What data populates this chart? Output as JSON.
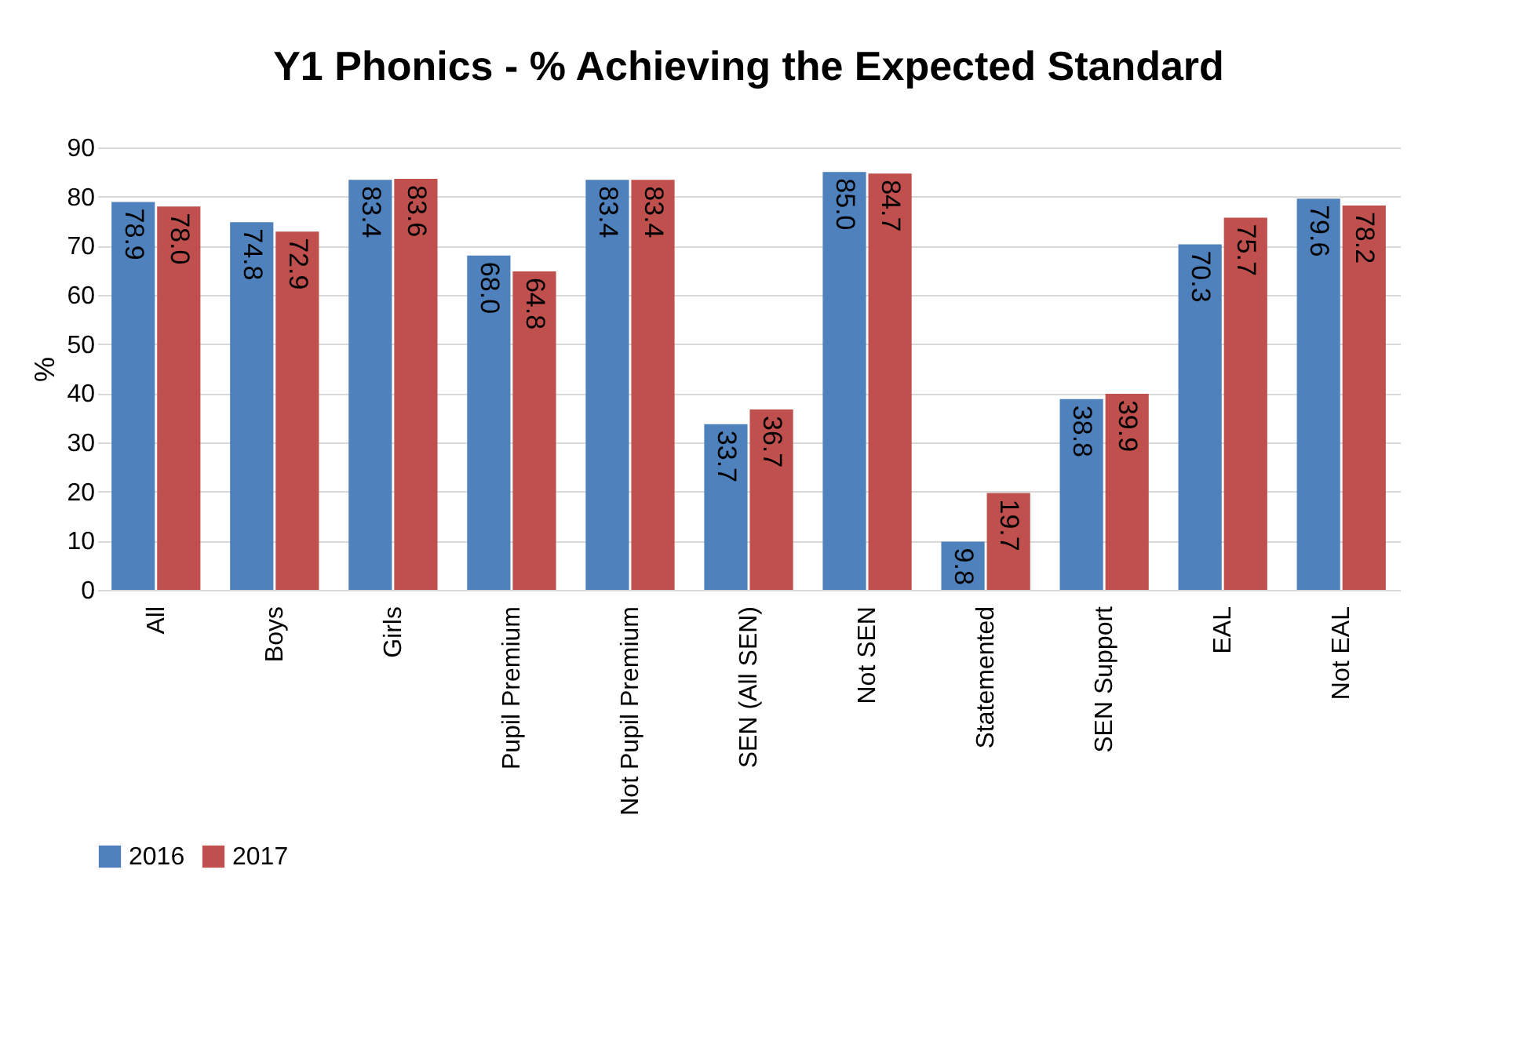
{
  "chart_data": {
    "type": "bar",
    "title": "Y1 Phonics - % Achieving the Expected Standard",
    "ylabel": "%",
    "categories": [
      "All",
      "Boys",
      "Girls",
      "Pupil Premium",
      "Not Pupil Premium",
      "SEN (All SEN)",
      "Not SEN",
      "Statemented",
      "SEN Support",
      "EAL",
      "Not EAL"
    ],
    "series": [
      {
        "name": "2016",
        "color": "#4f81bd",
        "values": [
          78.9,
          74.8,
          83.4,
          68.0,
          83.4,
          33.7,
          85.0,
          9.8,
          38.8,
          70.3,
          79.6
        ],
        "value_labels": [
          "78.9",
          "74.8",
          "83.4",
          "68.0",
          "83.4",
          "33.7",
          "85.0",
          "9.8",
          "38.8",
          "70.3",
          "79.6"
        ]
      },
      {
        "name": "2017",
        "color": "#c0504d",
        "values": [
          78.0,
          72.9,
          83.6,
          64.8,
          83.4,
          36.7,
          84.7,
          19.7,
          39.9,
          75.7,
          78.2
        ],
        "value_labels": [
          "78.0",
          "72.9",
          "83.6",
          "64.8",
          "83.4",
          "36.7",
          "84.7",
          "19.7",
          "39.9",
          "75.7",
          "78.2"
        ]
      }
    ],
    "ylim": [
      0,
      90
    ],
    "yticks": [
      0,
      10,
      20,
      30,
      40,
      50,
      60,
      70,
      80,
      90
    ],
    "grid": "y",
    "legend": "bottom"
  }
}
